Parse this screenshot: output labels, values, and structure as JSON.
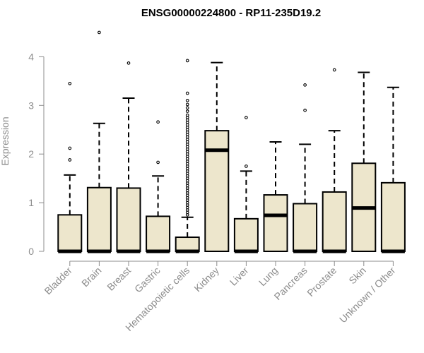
{
  "chart_data": {
    "type": "boxplot",
    "title": "ENSG00000224800 - RP11-235D19.2",
    "xlabel": "",
    "ylabel": "Expression",
    "ylim": [
      0,
      4.4
    ],
    "yticks": [
      "0",
      "1",
      "2",
      "3",
      "4"
    ],
    "grid": false,
    "legend": "none",
    "categories": [
      "Bladder",
      "Brain",
      "Breast",
      "Gastric",
      "Hematopoietic cells",
      "Kidney",
      "Liver",
      "Lung",
      "Pancreas",
      "Prostate",
      "Skin",
      "Unknown / Other"
    ],
    "series": [
      {
        "q1": 0,
        "median": 0,
        "q3": 0.75,
        "whisker_low": 0,
        "whisker_high": 1.57,
        "outliers": [
          1.88,
          2.12,
          3.45
        ]
      },
      {
        "q1": 0,
        "median": 0,
        "q3": 1.31,
        "whisker_low": 0,
        "whisker_high": 2.63,
        "outliers": [
          4.5
        ]
      },
      {
        "q1": 0,
        "median": 0,
        "q3": 1.3,
        "whisker_low": 0,
        "whisker_high": 3.15,
        "outliers": [
          3.87
        ]
      },
      {
        "q1": 0,
        "median": 0,
        "q3": 0.72,
        "whisker_low": 0,
        "whisker_high": 1.55,
        "outliers": [
          1.83,
          2.66
        ]
      },
      {
        "q1": 0,
        "median": 0,
        "q3": 0.29,
        "whisker_low": 0,
        "whisker_high": 0.7,
        "outliers": [
          0.75,
          0.8,
          0.85,
          0.9,
          0.95,
          1.0,
          1.05,
          1.1,
          1.15,
          1.2,
          1.25,
          1.3,
          1.35,
          1.4,
          1.45,
          1.5,
          1.55,
          1.6,
          1.65,
          1.7,
          1.75,
          1.8,
          1.85,
          1.9,
          1.95,
          2.0,
          2.05,
          2.1,
          2.15,
          2.2,
          2.25,
          2.3,
          2.35,
          2.4,
          2.45,
          2.5,
          2.55,
          2.6,
          2.65,
          2.7,
          2.75,
          2.8,
          2.88,
          2.95,
          3.02,
          3.1,
          3.25,
          3.92
        ]
      },
      {
        "q1": 0,
        "median": 2.08,
        "q3": 2.48,
        "whisker_low": 0,
        "whisker_high": 3.88,
        "outliers": []
      },
      {
        "q1": 0,
        "median": 0,
        "q3": 0.67,
        "whisker_low": 0,
        "whisker_high": 1.65,
        "outliers": [
          1.75,
          2.75
        ]
      },
      {
        "q1": 0,
        "median": 0.74,
        "q3": 1.16,
        "whisker_low": 0,
        "whisker_high": 2.25,
        "outliers": []
      },
      {
        "q1": 0,
        "median": 0,
        "q3": 0.98,
        "whisker_low": 0,
        "whisker_high": 2.2,
        "outliers": [
          2.9,
          3.42
        ]
      },
      {
        "q1": 0,
        "median": 0,
        "q3": 1.22,
        "whisker_low": 0,
        "whisker_high": 2.48,
        "outliers": [
          3.73
        ]
      },
      {
        "q1": 0,
        "median": 0.89,
        "q3": 1.81,
        "whisker_low": 0,
        "whisker_high": 3.68,
        "outliers": []
      },
      {
        "q1": 0,
        "median": 0,
        "q3": 1.41,
        "whisker_low": 0,
        "whisker_high": 3.37,
        "outliers": []
      }
    ]
  },
  "colors": {
    "box_fill": "#ede6cc",
    "box_stroke": "#000000",
    "axis": "#8c8c8c",
    "title": "#000000"
  }
}
